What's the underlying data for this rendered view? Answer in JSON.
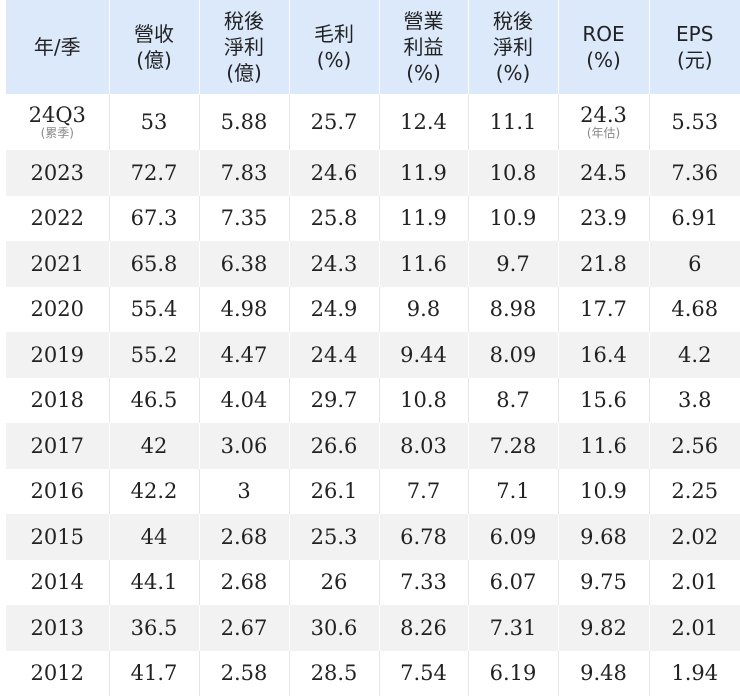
{
  "headers": [
    [
      "年/季"
    ],
    [
      "營收",
      "(億)"
    ],
    [
      "稅後",
      "淨利",
      "(億)"
    ],
    [
      "毛利",
      "(%)"
    ],
    [
      "營業",
      "利益",
      "(%)"
    ],
    [
      "稅後",
      "淨利",
      "(%)"
    ],
    [
      "ROE",
      "(%)"
    ],
    [
      "EPS",
      "(元)"
    ]
  ],
  "first_row": {
    "period": "24Q3",
    "period_note": "(累季)",
    "revenue": "53",
    "net_income": "5.88",
    "gross_margin": "25.7",
    "operating_margin": "12.4",
    "net_margin": "11.1",
    "roe": "24.3",
    "roe_note": "(年估)",
    "eps": "5.53"
  },
  "rows": [
    [
      "2023",
      "72.7",
      "7.83",
      "24.6",
      "11.9",
      "10.8",
      "24.5",
      "7.36"
    ],
    [
      "2022",
      "67.3",
      "7.35",
      "25.8",
      "11.9",
      "10.9",
      "23.9",
      "6.91"
    ],
    [
      "2021",
      "65.8",
      "6.38",
      "24.3",
      "11.6",
      "9.7",
      "21.8",
      "6"
    ],
    [
      "2020",
      "55.4",
      "4.98",
      "24.9",
      "9.8",
      "8.98",
      "17.7",
      "4.68"
    ],
    [
      "2019",
      "55.2",
      "4.47",
      "24.4",
      "9.44",
      "8.09",
      "16.4",
      "4.2"
    ],
    [
      "2018",
      "46.5",
      "4.04",
      "29.7",
      "10.8",
      "8.7",
      "15.6",
      "3.8"
    ],
    [
      "2017",
      "42",
      "3.06",
      "26.6",
      "8.03",
      "7.28",
      "11.6",
      "2.56"
    ],
    [
      "2016",
      "42.2",
      "3",
      "26.1",
      "7.7",
      "7.1",
      "10.9",
      "2.25"
    ],
    [
      "2015",
      "44",
      "2.68",
      "25.3",
      "6.78",
      "6.09",
      "9.68",
      "2.02"
    ],
    [
      "2014",
      "44.1",
      "2.68",
      "26",
      "7.33",
      "6.07",
      "9.75",
      "2.01"
    ],
    [
      "2013",
      "36.5",
      "2.67",
      "30.6",
      "8.26",
      "7.31",
      "9.82",
      "2.01"
    ],
    [
      "2012",
      "41.7",
      "2.58",
      "28.5",
      "7.54",
      "6.19",
      "9.48",
      "1.94"
    ]
  ]
}
